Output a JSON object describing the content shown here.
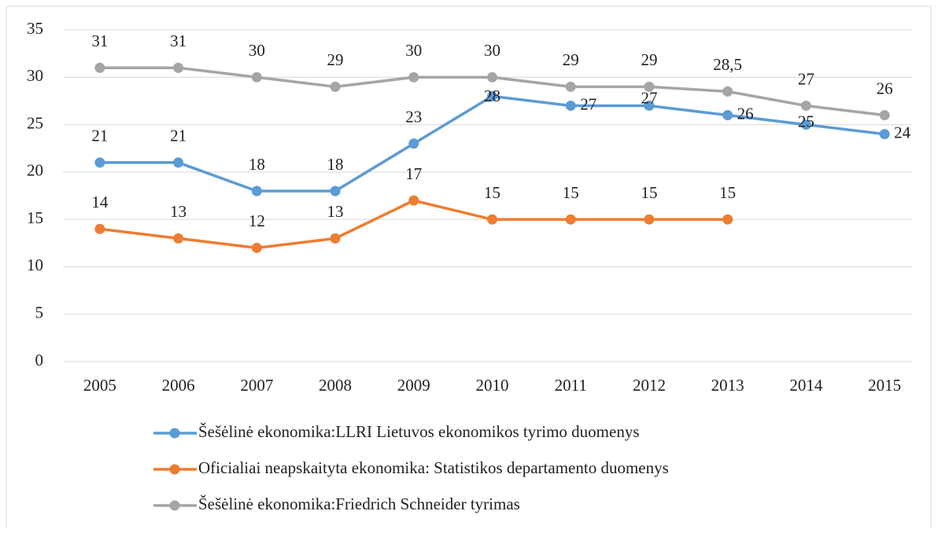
{
  "chart_data": {
    "type": "line",
    "categories": [
      "2005",
      "2006",
      "2007",
      "2008",
      "2009",
      "2010",
      "2011",
      "2012",
      "2013",
      "2014",
      "2015"
    ],
    "series": [
      {
        "name": "Šešėlinė ekonomika:LLRI Lietuvos ekonomikos tyrimo duomenys",
        "color": "#5b9bd5",
        "values": [
          21,
          21,
          18,
          18,
          23,
          28,
          27,
          27,
          26,
          25,
          24
        ]
      },
      {
        "name": "Oficialiai neapskaityta ekonomika: Statistikos departamento duomenys",
        "color": "#ed7d31",
        "values": [
          14,
          13,
          12,
          13,
          17,
          15,
          15,
          15,
          15,
          null,
          null
        ]
      },
      {
        "name": "Šešėlinė ekonomika:Friedrich Schneider tyrimas",
        "color": "#a5a5a5",
        "values": [
          31,
          31,
          30,
          29,
          30,
          30,
          29,
          29,
          28.5,
          27,
          26
        ],
        "value_labels": [
          "31",
          "31",
          "30",
          "29",
          "30",
          "30",
          "29",
          "29",
          "28,5",
          "27",
          "26"
        ]
      }
    ],
    "ylim": [
      0,
      35
    ],
    "yticks": [
      0,
      5,
      10,
      15,
      20,
      25,
      30,
      35
    ],
    "grid": true,
    "legend": "bottom"
  }
}
